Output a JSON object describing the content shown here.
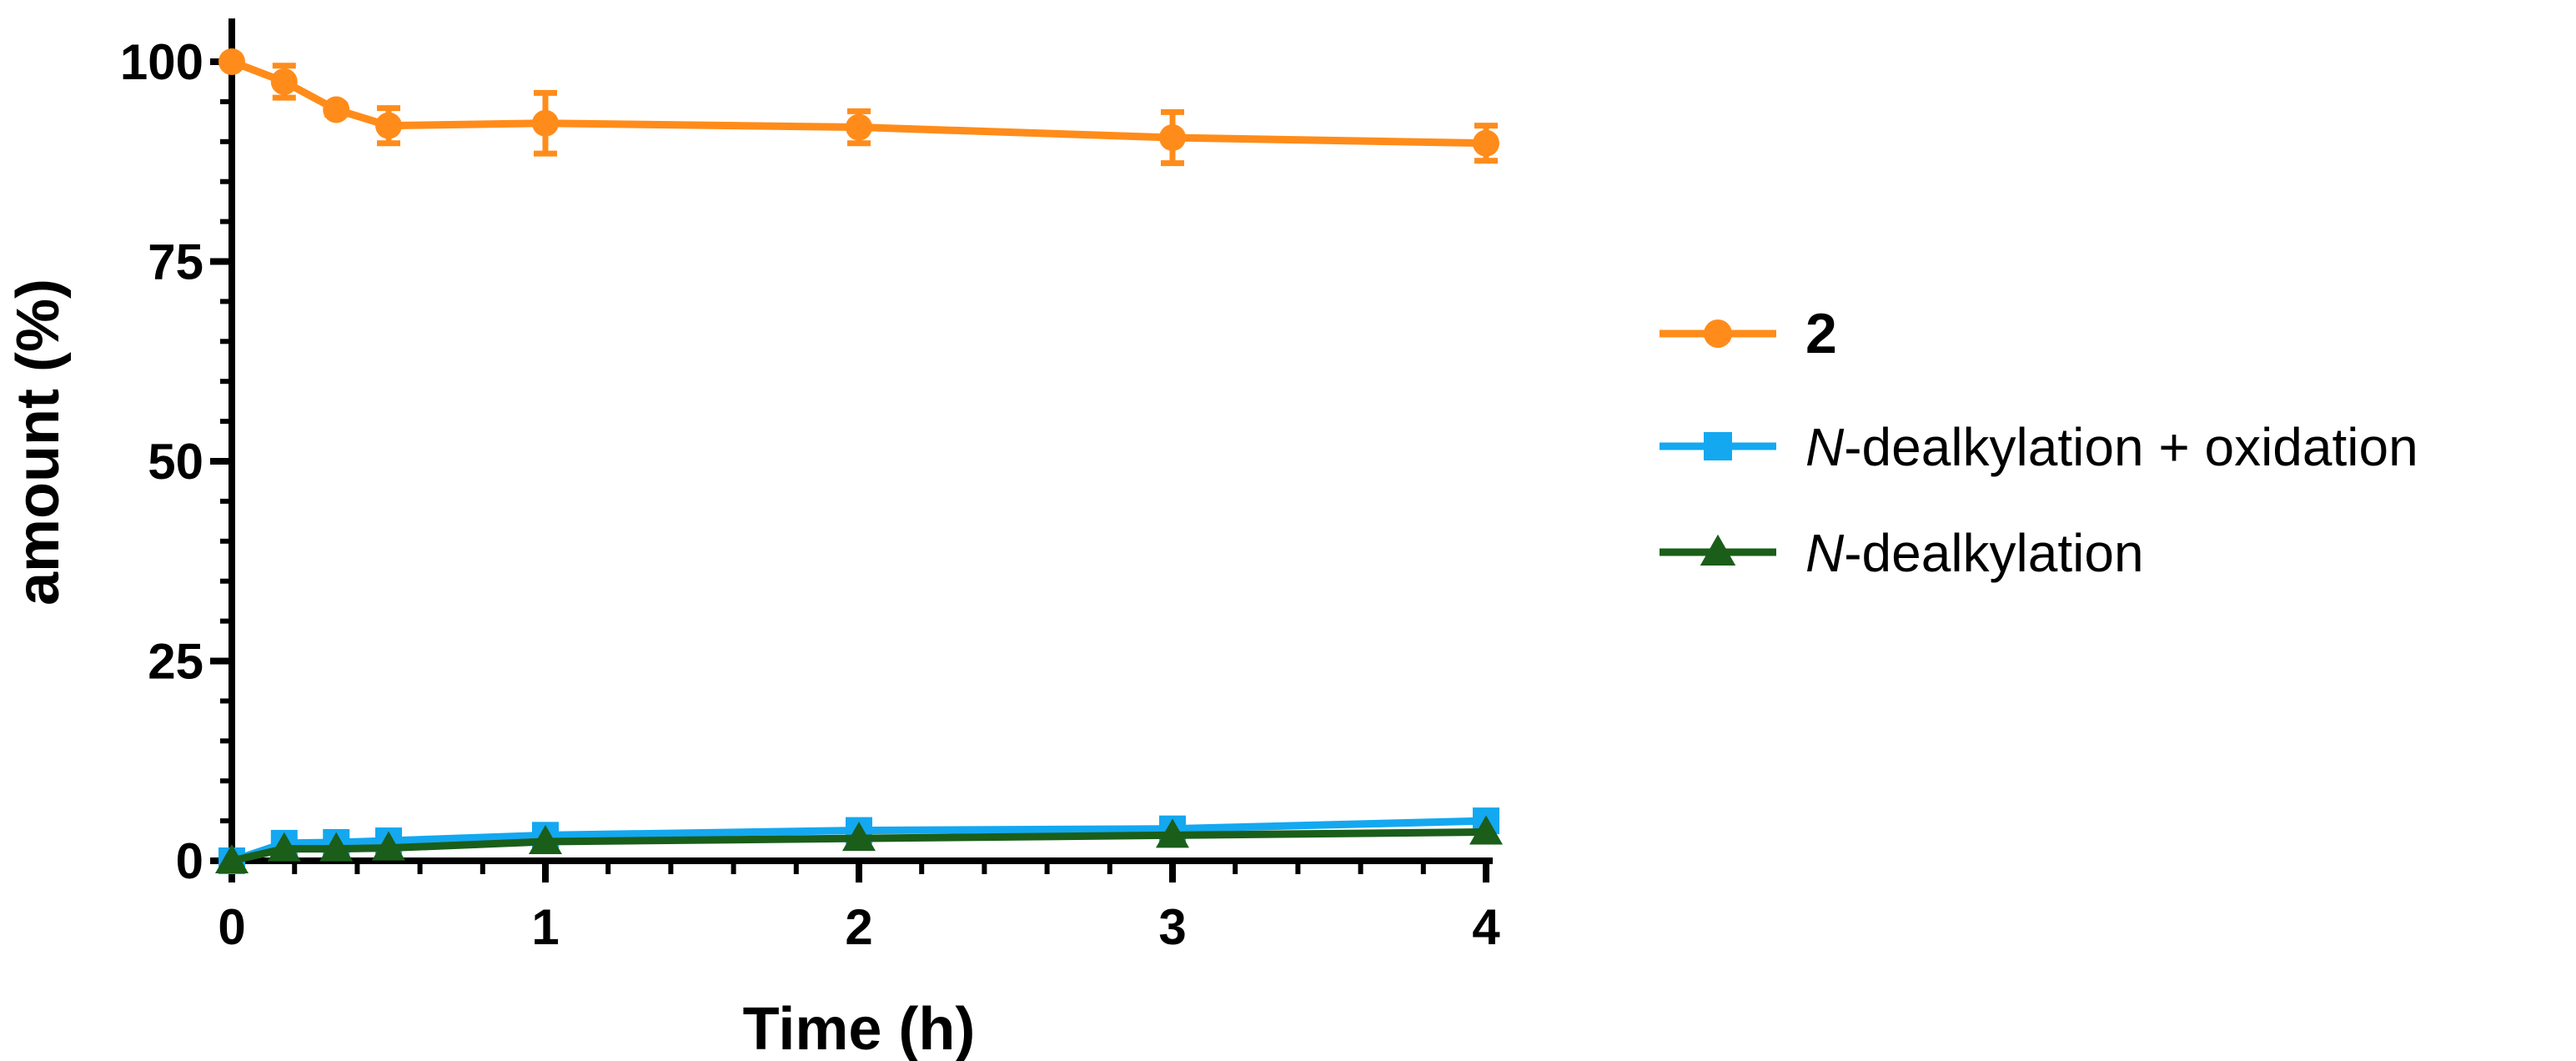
{
  "chart_data": {
    "type": "line",
    "xlabel": "Time (h)",
    "ylabel": "amount (%)",
    "xlim": [
      0,
      4
    ],
    "ylim": [
      0,
      105
    ],
    "x_ticks": [
      "0",
      "1",
      "2",
      "3",
      "4"
    ],
    "y_ticks": [
      "0",
      "25",
      "50",
      "75",
      "100"
    ],
    "x_tick_values": [
      0,
      1,
      2,
      3,
      4
    ],
    "y_tick_values": [
      0,
      25,
      50,
      75,
      100
    ],
    "grid": false,
    "legend_position": "right",
    "x": [
      0,
      0.167,
      0.333,
      0.5,
      1,
      2,
      3,
      4
    ],
    "series": [
      {
        "name": "2",
        "italic_prefix": "",
        "label_rest": "2",
        "bold": true,
        "color": "#ff8c1a",
        "marker": "circle",
        "values": [
          100,
          97.5,
          94,
          92,
          92.3,
          91.8,
          90.5,
          89.8
        ],
        "errors": [
          0,
          2,
          0.6,
          2.2,
          3.8,
          2,
          3.2,
          2.2
        ]
      },
      {
        "name": "N-dealkylation + oxidation",
        "italic_prefix": "N",
        "label_rest": "-dealkylation + oxidation",
        "bold": false,
        "color": "#14a8f0",
        "marker": "square",
        "values": [
          0,
          2.2,
          2.3,
          2.5,
          3.2,
          3.8,
          4,
          5
        ]
      },
      {
        "name": "N-dealkylation",
        "italic_prefix": "N",
        "label_rest": "-dealkylation",
        "bold": false,
        "color": "#1a5e1a",
        "marker": "triangle",
        "values": [
          0,
          1.5,
          1.5,
          1.6,
          2.4,
          2.8,
          3.2,
          3.6
        ]
      }
    ]
  }
}
